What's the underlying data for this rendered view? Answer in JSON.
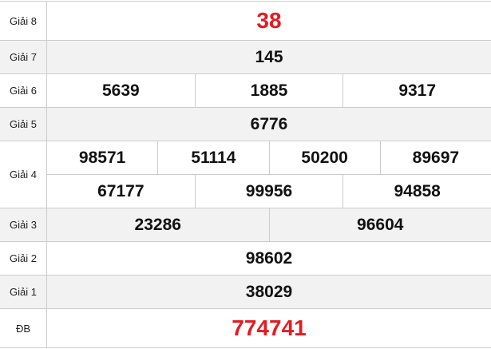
{
  "accent_color": "#e31b23",
  "rows": [
    {
      "label": "Giải 8",
      "values": [
        "38"
      ]
    },
    {
      "label": "Giải 7",
      "values": [
        "145"
      ]
    },
    {
      "label": "Giải 6",
      "values": [
        "5639",
        "1885",
        "9317"
      ]
    },
    {
      "label": "Giải 5",
      "values": [
        "6776"
      ]
    },
    {
      "label": "Giải 4",
      "values": [
        "98571",
        "51114",
        "50200",
        "89697",
        "67177",
        "99956",
        "94858"
      ]
    },
    {
      "label": "Giải 3",
      "values": [
        "23286",
        "96604"
      ]
    },
    {
      "label": "Giải 2",
      "values": [
        "98602"
      ]
    },
    {
      "label": "Giải 1",
      "values": [
        "38029"
      ]
    },
    {
      "label": "ĐB",
      "values": [
        "774741"
      ]
    }
  ]
}
